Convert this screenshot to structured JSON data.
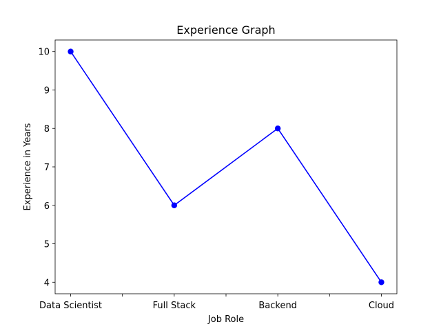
{
  "chart_data": {
    "type": "line",
    "title": "Experience Graph",
    "xlabel": "Job Role",
    "ylabel": "Experience in Years",
    "categories": [
      "Data Scientist",
      "Full Stack",
      "Backend",
      "Cloud"
    ],
    "series": [
      {
        "values": [
          10,
          6,
          8,
          4
        ],
        "color": "#0000ff",
        "marker": "circle"
      }
    ],
    "ylim": [
      3.7,
      10.3
    ],
    "yticks": [
      4,
      5,
      6,
      7,
      8,
      9,
      10
    ],
    "grid": false
  }
}
